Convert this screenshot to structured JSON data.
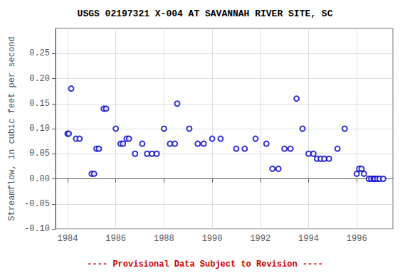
{
  "chart_data": {
    "type": "scatter",
    "title": "USGS 02197321 X-004 AT SAVANNAH RIVER SITE, SC",
    "ylabel": "Streamflow, in cubic feet per second",
    "annotations": [
      {
        "text": "---- Provisional Data Subject to Revision ----",
        "color": "#cc0000"
      }
    ],
    "color": "#0000cc",
    "marker": "hollow_circle",
    "grid": true,
    "xlim": [
      1983.5,
      1997.5
    ],
    "xticks": [
      1984,
      1986,
      1988,
      1990,
      1992,
      1994,
      1996
    ],
    "ylim": [
      -0.1,
      0.3
    ],
    "yticks": [
      {
        "value": -0.1,
        "label": "-0.10"
      },
      {
        "value": -0.05,
        "label": "-0.05"
      },
      {
        "value": 0.0,
        "label": "0.00"
      },
      {
        "value": 0.05,
        "label": "0.05"
      },
      {
        "value": 0.1,
        "label": "0.10"
      },
      {
        "value": 0.15,
        "label": "0.15"
      },
      {
        "value": 0.2,
        "label": "0.20"
      },
      {
        "value": 0.25,
        "label": "0.25"
      }
    ],
    "x": [
      1984.0,
      1984.05,
      1984.15,
      1984.35,
      1984.5,
      1985.0,
      1985.1,
      1985.2,
      1985.3,
      1985.5,
      1985.6,
      1986.0,
      1986.2,
      1986.3,
      1986.45,
      1986.55,
      1986.8,
      1987.1,
      1987.3,
      1987.5,
      1987.7,
      1988.0,
      1988.25,
      1988.45,
      1988.55,
      1989.05,
      1989.4,
      1989.65,
      1990.0,
      1990.35,
      1991.0,
      1991.35,
      1991.8,
      1992.25,
      1992.5,
      1992.75,
      1993.0,
      1993.25,
      1993.5,
      1993.75,
      1994.0,
      1994.2,
      1994.35,
      1994.5,
      1994.65,
      1994.85,
      1995.2,
      1995.5,
      1996.0,
      1996.1,
      1996.2,
      1996.3,
      1996.5,
      1996.6,
      1996.7,
      1996.75,
      1996.85,
      1996.95,
      1997.1
    ],
    "values": [
      0.09,
      0.09,
      0.18,
      0.08,
      0.08,
      0.01,
      0.01,
      0.06,
      0.06,
      0.14,
      0.14,
      0.1,
      0.07,
      0.07,
      0.08,
      0.08,
      0.05,
      0.07,
      0.05,
      0.05,
      0.05,
      0.1,
      0.07,
      0.07,
      0.15,
      0.1,
      0.07,
      0.07,
      0.08,
      0.08,
      0.06,
      0.06,
      0.08,
      0.07,
      0.02,
      0.02,
      0.06,
      0.06,
      0.16,
      0.1,
      0.05,
      0.05,
      0.04,
      0.04,
      0.04,
      0.04,
      0.06,
      0.1,
      0.01,
      0.02,
      0.02,
      0.01,
      0.0,
      0.0,
      0.0,
      0.0,
      0.0,
      0.0,
      0.0
    ]
  }
}
